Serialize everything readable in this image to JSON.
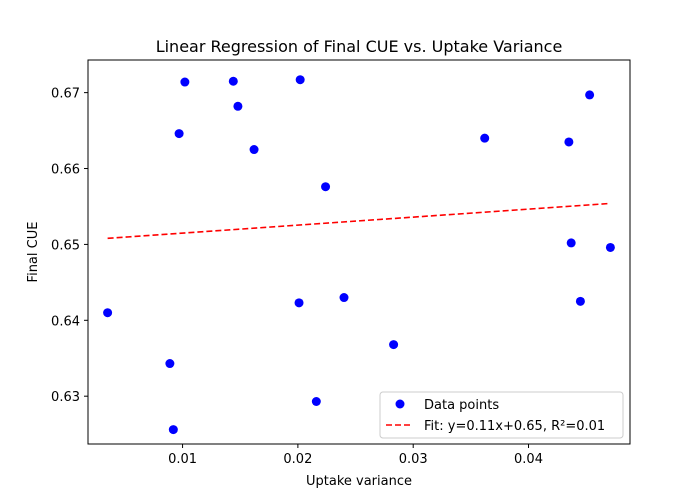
{
  "chart_data": {
    "type": "scatter",
    "title": "Linear Regression of Final CUE vs. Uptake Variance",
    "xlabel": "Uptake variance",
    "ylabel": "Final CUE",
    "xlim": [
      0.0018,
      0.0488
    ],
    "ylim": [
      0.6237,
      0.6743
    ],
    "xticks": [
      0.01,
      0.02,
      0.03,
      0.04
    ],
    "xtick_labels": [
      "0.01",
      "0.02",
      "0.03",
      "0.04"
    ],
    "yticks": [
      0.63,
      0.64,
      0.65,
      0.66,
      0.67
    ],
    "ytick_labels": [
      "0.63",
      "0.64",
      "0.65",
      "0.66",
      "0.67"
    ],
    "grid": false,
    "legend_placement": "lower-right",
    "series": [
      {
        "name": "Data points",
        "kind": "scatter",
        "color": "#0000ff",
        "points": [
          {
            "x": 0.0035,
            "y": 0.641
          },
          {
            "x": 0.0089,
            "y": 0.6343
          },
          {
            "x": 0.0092,
            "y": 0.6256
          },
          {
            "x": 0.0097,
            "y": 0.6646
          },
          {
            "x": 0.0102,
            "y": 0.6714
          },
          {
            "x": 0.0144,
            "y": 0.6715
          },
          {
            "x": 0.0148,
            "y": 0.6682
          },
          {
            "x": 0.0162,
            "y": 0.6625
          },
          {
            "x": 0.0202,
            "y": 0.6717
          },
          {
            "x": 0.0201,
            "y": 0.6423
          },
          {
            "x": 0.0216,
            "y": 0.6293
          },
          {
            "x": 0.0224,
            "y": 0.6576
          },
          {
            "x": 0.024,
            "y": 0.643
          },
          {
            "x": 0.0283,
            "y": 0.6368
          },
          {
            "x": 0.0362,
            "y": 0.664
          },
          {
            "x": 0.0435,
            "y": 0.6635
          },
          {
            "x": 0.0437,
            "y": 0.6502
          },
          {
            "x": 0.0445,
            "y": 0.6425
          },
          {
            "x": 0.0453,
            "y": 0.6697
          },
          {
            "x": 0.0471,
            "y": 0.6496
          }
        ]
      },
      {
        "name": "Fit: y=0.11x+0.65, R²=0.01",
        "kind": "line",
        "style": "dashed",
        "color": "#ff0000",
        "points": [
          {
            "x": 0.0035,
            "y": 0.6508
          },
          {
            "x": 0.0471,
            "y": 0.6554
          }
        ]
      }
    ]
  }
}
